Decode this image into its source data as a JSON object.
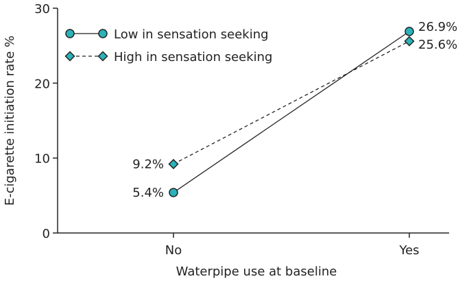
{
  "chart_data": {
    "type": "line",
    "title": "",
    "xlabel": "Waterpipe use at baseline",
    "ylabel": "E-cigarette initiation rate %",
    "categories": [
      "No",
      "Yes"
    ],
    "ylim": [
      0,
      30
    ],
    "yticks": [
      0,
      10,
      20,
      30
    ],
    "grid": false,
    "legend_position": "top-left",
    "series": [
      {
        "name": "Low in sensation seeking",
        "values": [
          5.4,
          26.9
        ],
        "labels": [
          "5.4%",
          "26.9%"
        ],
        "marker": "circle",
        "line_style": "solid",
        "color": "#2ab3b8"
      },
      {
        "name": "High in sensation seeking",
        "values": [
          9.2,
          25.6
        ],
        "labels": [
          "9.2%",
          "25.6%"
        ],
        "marker": "diamond",
        "line_style": "dashed",
        "color": "#2ab3b8"
      }
    ]
  }
}
